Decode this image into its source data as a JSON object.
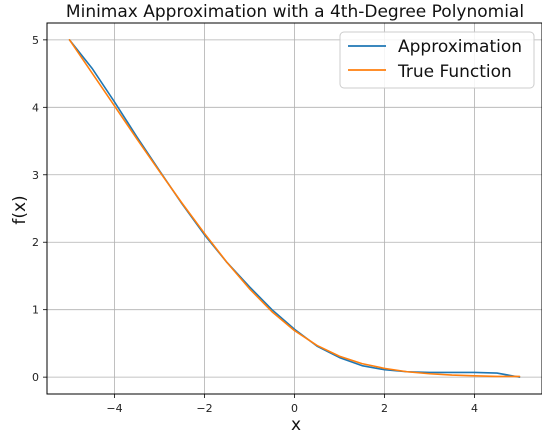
{
  "chart_data": {
    "type": "line",
    "title": "Minimax Approximation with a 4th-Degree Polynomial",
    "xlabel": "x",
    "ylabel": "f(x)",
    "xlim": [
      -5.5,
      5.5
    ],
    "ylim": [
      -0.25,
      5.25
    ],
    "xticks": [
      -4,
      -2,
      0,
      2,
      4
    ],
    "xtick_labels": [
      "−4",
      "−2",
      "0",
      "2",
      "4"
    ],
    "yticks": [
      0,
      1,
      2,
      3,
      4,
      5
    ],
    "ytick_labels": [
      "0",
      "1",
      "2",
      "3",
      "4",
      "5"
    ],
    "grid": true,
    "legend_position": "top-right",
    "colors": {
      "approximation": "#1f77b4",
      "true_function": "#ff7f0e"
    },
    "x": [
      -5,
      -4.5,
      -4,
      -3.5,
      -3,
      -2.5,
      -2,
      -1.5,
      -1,
      -0.5,
      0,
      0.5,
      1,
      1.5,
      2,
      2.5,
      3,
      3.5,
      4,
      4.5,
      5
    ],
    "series": [
      {
        "name": "Approximation",
        "values": [
          5.0,
          4.58,
          4.08,
          3.56,
          3.06,
          2.57,
          2.11,
          1.7,
          1.34,
          1.0,
          0.71,
          0.46,
          0.29,
          0.17,
          0.11,
          0.08,
          0.07,
          0.07,
          0.07,
          0.06,
          0.0
        ]
      },
      {
        "name": "True Function",
        "values": [
          5.0,
          4.51,
          4.02,
          3.53,
          3.05,
          2.58,
          2.13,
          1.7,
          1.31,
          0.97,
          0.69,
          0.47,
          0.31,
          0.2,
          0.13,
          0.08,
          0.05,
          0.03,
          0.02,
          0.01,
          0.01
        ]
      }
    ]
  }
}
